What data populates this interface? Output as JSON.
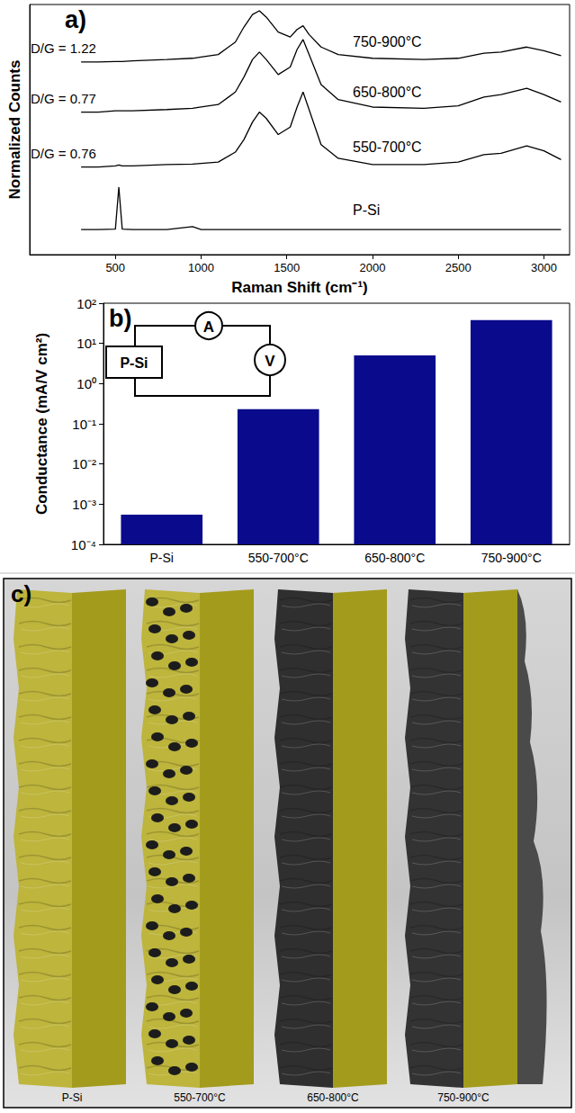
{
  "chart_data": [
    {
      "type": "line",
      "panel_label": "a)",
      "xlabel": "Raman Shift (cm⁻¹)",
      "ylabel": "Normalized Counts",
      "x": [
        300,
        400,
        500,
        520,
        540,
        600,
        800,
        950,
        1000,
        1100,
        1200,
        1250,
        1300,
        1340,
        1380,
        1450,
        1520,
        1560,
        1595,
        1630,
        1700,
        1800,
        2000,
        2300,
        2500,
        2650,
        2750,
        2900,
        3000,
        3100
      ],
      "series": [
        {
          "name": "P-Si",
          "color": "#000000",
          "values": [
            1.0,
            1.0,
            1.02,
            2.7,
            1.02,
            1.0,
            1.0,
            1.12,
            1.0,
            1.0,
            1.0,
            1.0,
            1.0,
            1.0,
            1.0,
            1.0,
            1.0,
            1.0,
            1.0,
            1.0,
            1.0,
            1.0,
            1.0,
            1.0,
            1.0,
            1.0,
            1.0,
            1.0,
            1.0,
            1.0
          ]
        },
        {
          "name": "550-700°C",
          "color": "#000000",
          "annotation": "D/G = 0.76",
          "values": [
            3.5,
            3.5,
            3.55,
            3.58,
            3.55,
            3.55,
            3.6,
            3.62,
            3.65,
            3.7,
            4.1,
            4.6,
            5.3,
            5.7,
            5.45,
            4.8,
            5.1,
            5.9,
            6.5,
            5.8,
            4.4,
            3.85,
            3.6,
            3.6,
            3.7,
            4.0,
            4.05,
            4.35,
            4.15,
            3.8
          ]
        },
        {
          "name": "650-800°C",
          "color": "#000000",
          "annotation": "D/G = 0.77",
          "values": [
            5.7,
            5.7,
            5.75,
            5.75,
            5.75,
            5.75,
            5.8,
            5.85,
            5.9,
            6.0,
            6.5,
            7.1,
            7.8,
            8.1,
            7.8,
            7.2,
            7.5,
            8.2,
            8.6,
            8.0,
            6.8,
            6.2,
            5.9,
            5.85,
            5.95,
            6.3,
            6.4,
            6.65,
            6.4,
            6.1
          ]
        },
        {
          "name": "750-900°C",
          "color": "#000000",
          "annotation": "D/G = 1.22",
          "values": [
            7.7,
            7.7,
            7.72,
            7.72,
            7.72,
            7.75,
            7.8,
            7.85,
            7.9,
            8.0,
            8.5,
            9.1,
            9.6,
            9.75,
            9.5,
            8.9,
            8.7,
            9.0,
            9.15,
            8.8,
            8.3,
            8.0,
            7.85,
            7.8,
            7.85,
            8.05,
            8.1,
            8.3,
            8.15,
            7.95
          ]
        }
      ],
      "xlim": [
        0,
        3150
      ],
      "xticks": [
        500,
        1000,
        1500,
        2000,
        2500,
        3000
      ],
      "ylim": [
        0,
        10
      ],
      "tick_labels": "x",
      "grid": false
    },
    {
      "type": "bar",
      "panel_label": "b)",
      "log": "y",
      "ylabel": "Conductance (mA/V cm²)",
      "categories": [
        "P-Si",
        "550-700°C",
        "650-800°C",
        "750-900°C"
      ],
      "values": [
        0.00055,
        0.23,
        5,
        38
      ],
      "color": "#0a0a8c",
      "ylim": [
        0.0001,
        100
      ],
      "yticks": [
        {
          "value": 0.0001,
          "label": "10⁻⁴"
        },
        {
          "value": 0.001,
          "label": "10⁻³"
        },
        {
          "value": 0.01,
          "label": "10⁻²"
        },
        {
          "value": 0.1,
          "label": "10⁻¹"
        },
        {
          "value": 1,
          "label": "10⁰"
        },
        {
          "value": 10,
          "label": "10¹"
        },
        {
          "value": 100,
          "label": "10²"
        }
      ],
      "grid": false,
      "inset": {
        "box": "P-Si",
        "meters": [
          "A",
          "V"
        ]
      }
    }
  ],
  "illustration": {
    "panel_label": "c)",
    "labels": [
      "P-Si",
      "550-700°C",
      "650-800°C",
      "750-900°C"
    ]
  }
}
